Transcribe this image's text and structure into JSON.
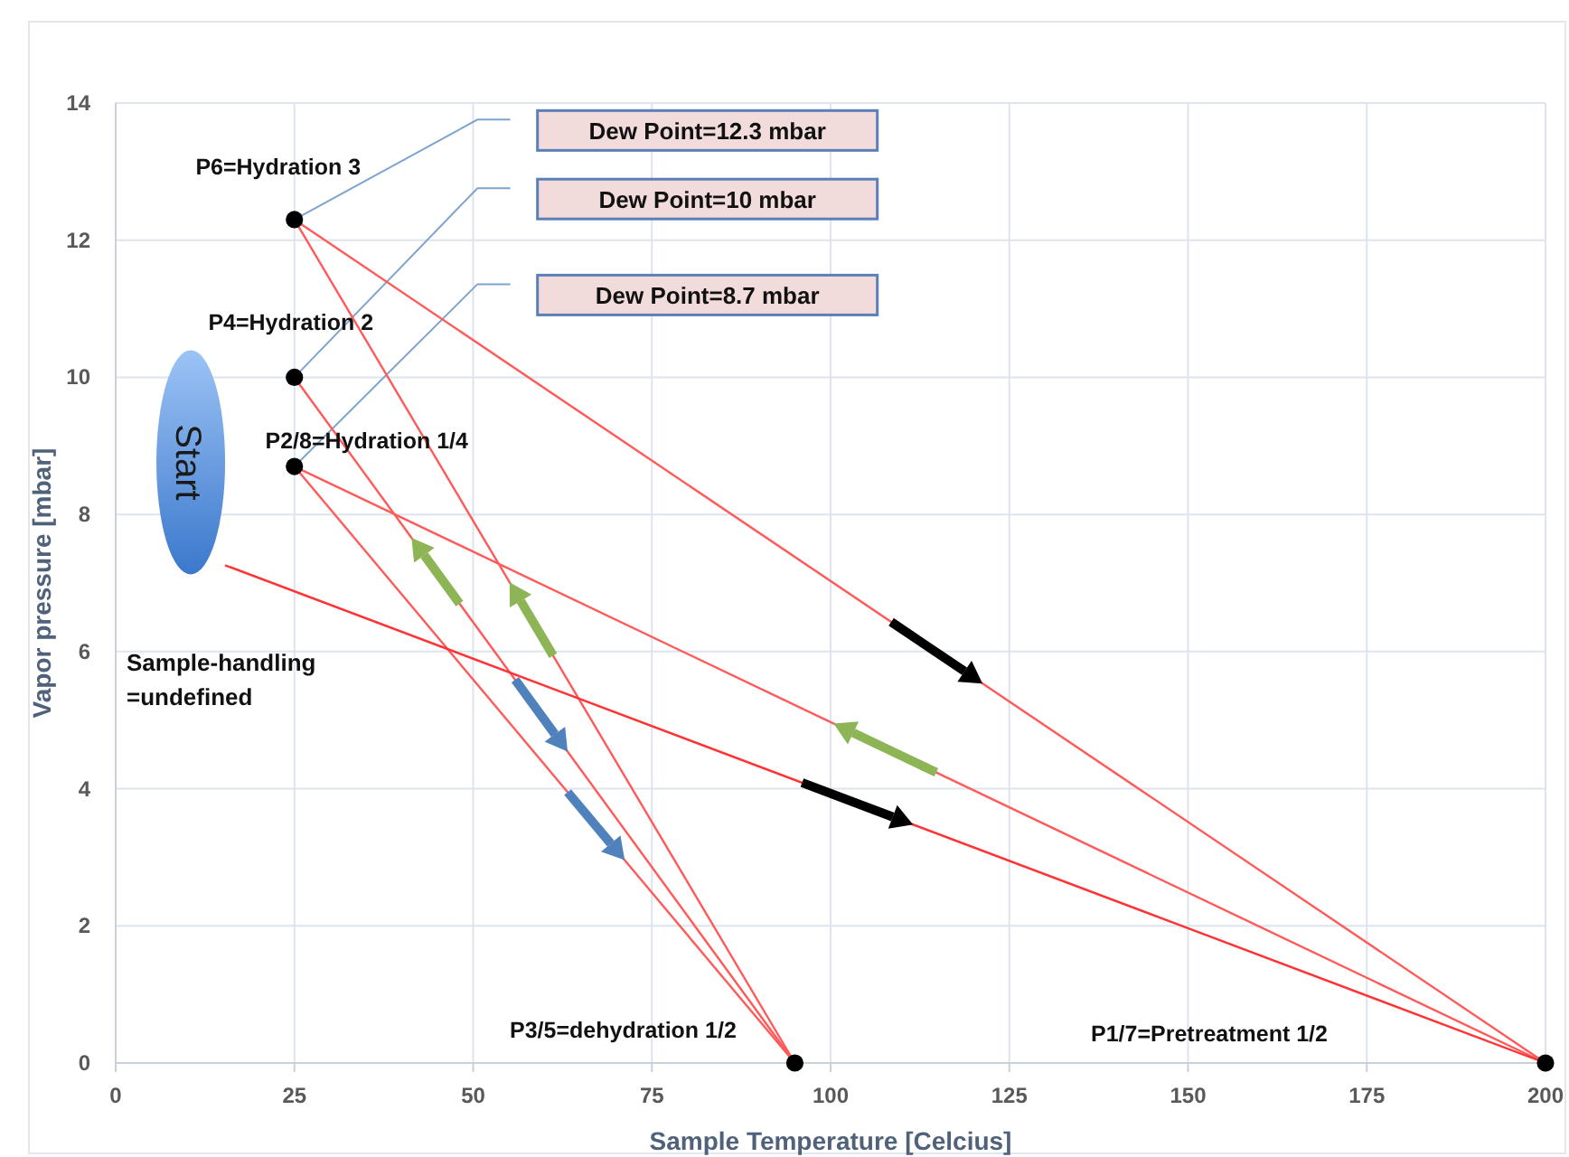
{
  "chart_data": {
    "type": "line",
    "xlabel": "Sample Temperature [Celcius]",
    "ylabel": "Vapor pressure [mbar]",
    "xlim": [
      0,
      200
    ],
    "xticks": [
      0,
      25,
      50,
      75,
      100,
      125,
      150,
      175,
      200
    ],
    "ylim": [
      0,
      14
    ],
    "yticks": [
      0,
      2,
      4,
      6,
      8,
      10,
      12,
      14
    ],
    "grid": true,
    "marker": "none",
    "line_style": "solid",
    "series": [
      {
        "color": "#ff5a5a",
        "x": [
          25,
          95
        ],
        "values": [
          12.3,
          0
        ]
      },
      {
        "color": "#ff5a5a",
        "x": [
          25,
          200
        ],
        "values": [
          12.3,
          0
        ]
      },
      {
        "color": "#ff5a5a",
        "x": [
          25,
          95
        ],
        "values": [
          10,
          0
        ]
      },
      {
        "color": "#ff5a5a",
        "x": [
          25,
          95
        ],
        "values": [
          8.7,
          0
        ]
      },
      {
        "color": "#ff5a5a",
        "x": [
          25,
          200
        ],
        "values": [
          8.7,
          0
        ]
      },
      {
        "color": "#ff3333",
        "x": [
          15.3,
          200
        ],
        "values": [
          7.26,
          0
        ]
      },
      {
        "type": "scatter",
        "color": "#000000",
        "marker": "circle",
        "x": [
          25,
          25,
          25,
          95,
          200
        ],
        "values": [
          12.3,
          10,
          8.7,
          0,
          0
        ]
      }
    ],
    "annotations": [
      "P6=Hydration  3",
      "P4=Hydration  2",
      "P2/8=Hydration  1/4",
      "P3/5=dehydration 1/2",
      "P1/7=Pretreatment 1/2",
      "Dew Point=12.3 mbar",
      "Dew Point=10 mbar",
      "Dew Point=8.7 mbar",
      "Start",
      "Sample-handling\n=undefined"
    ]
  }
}
